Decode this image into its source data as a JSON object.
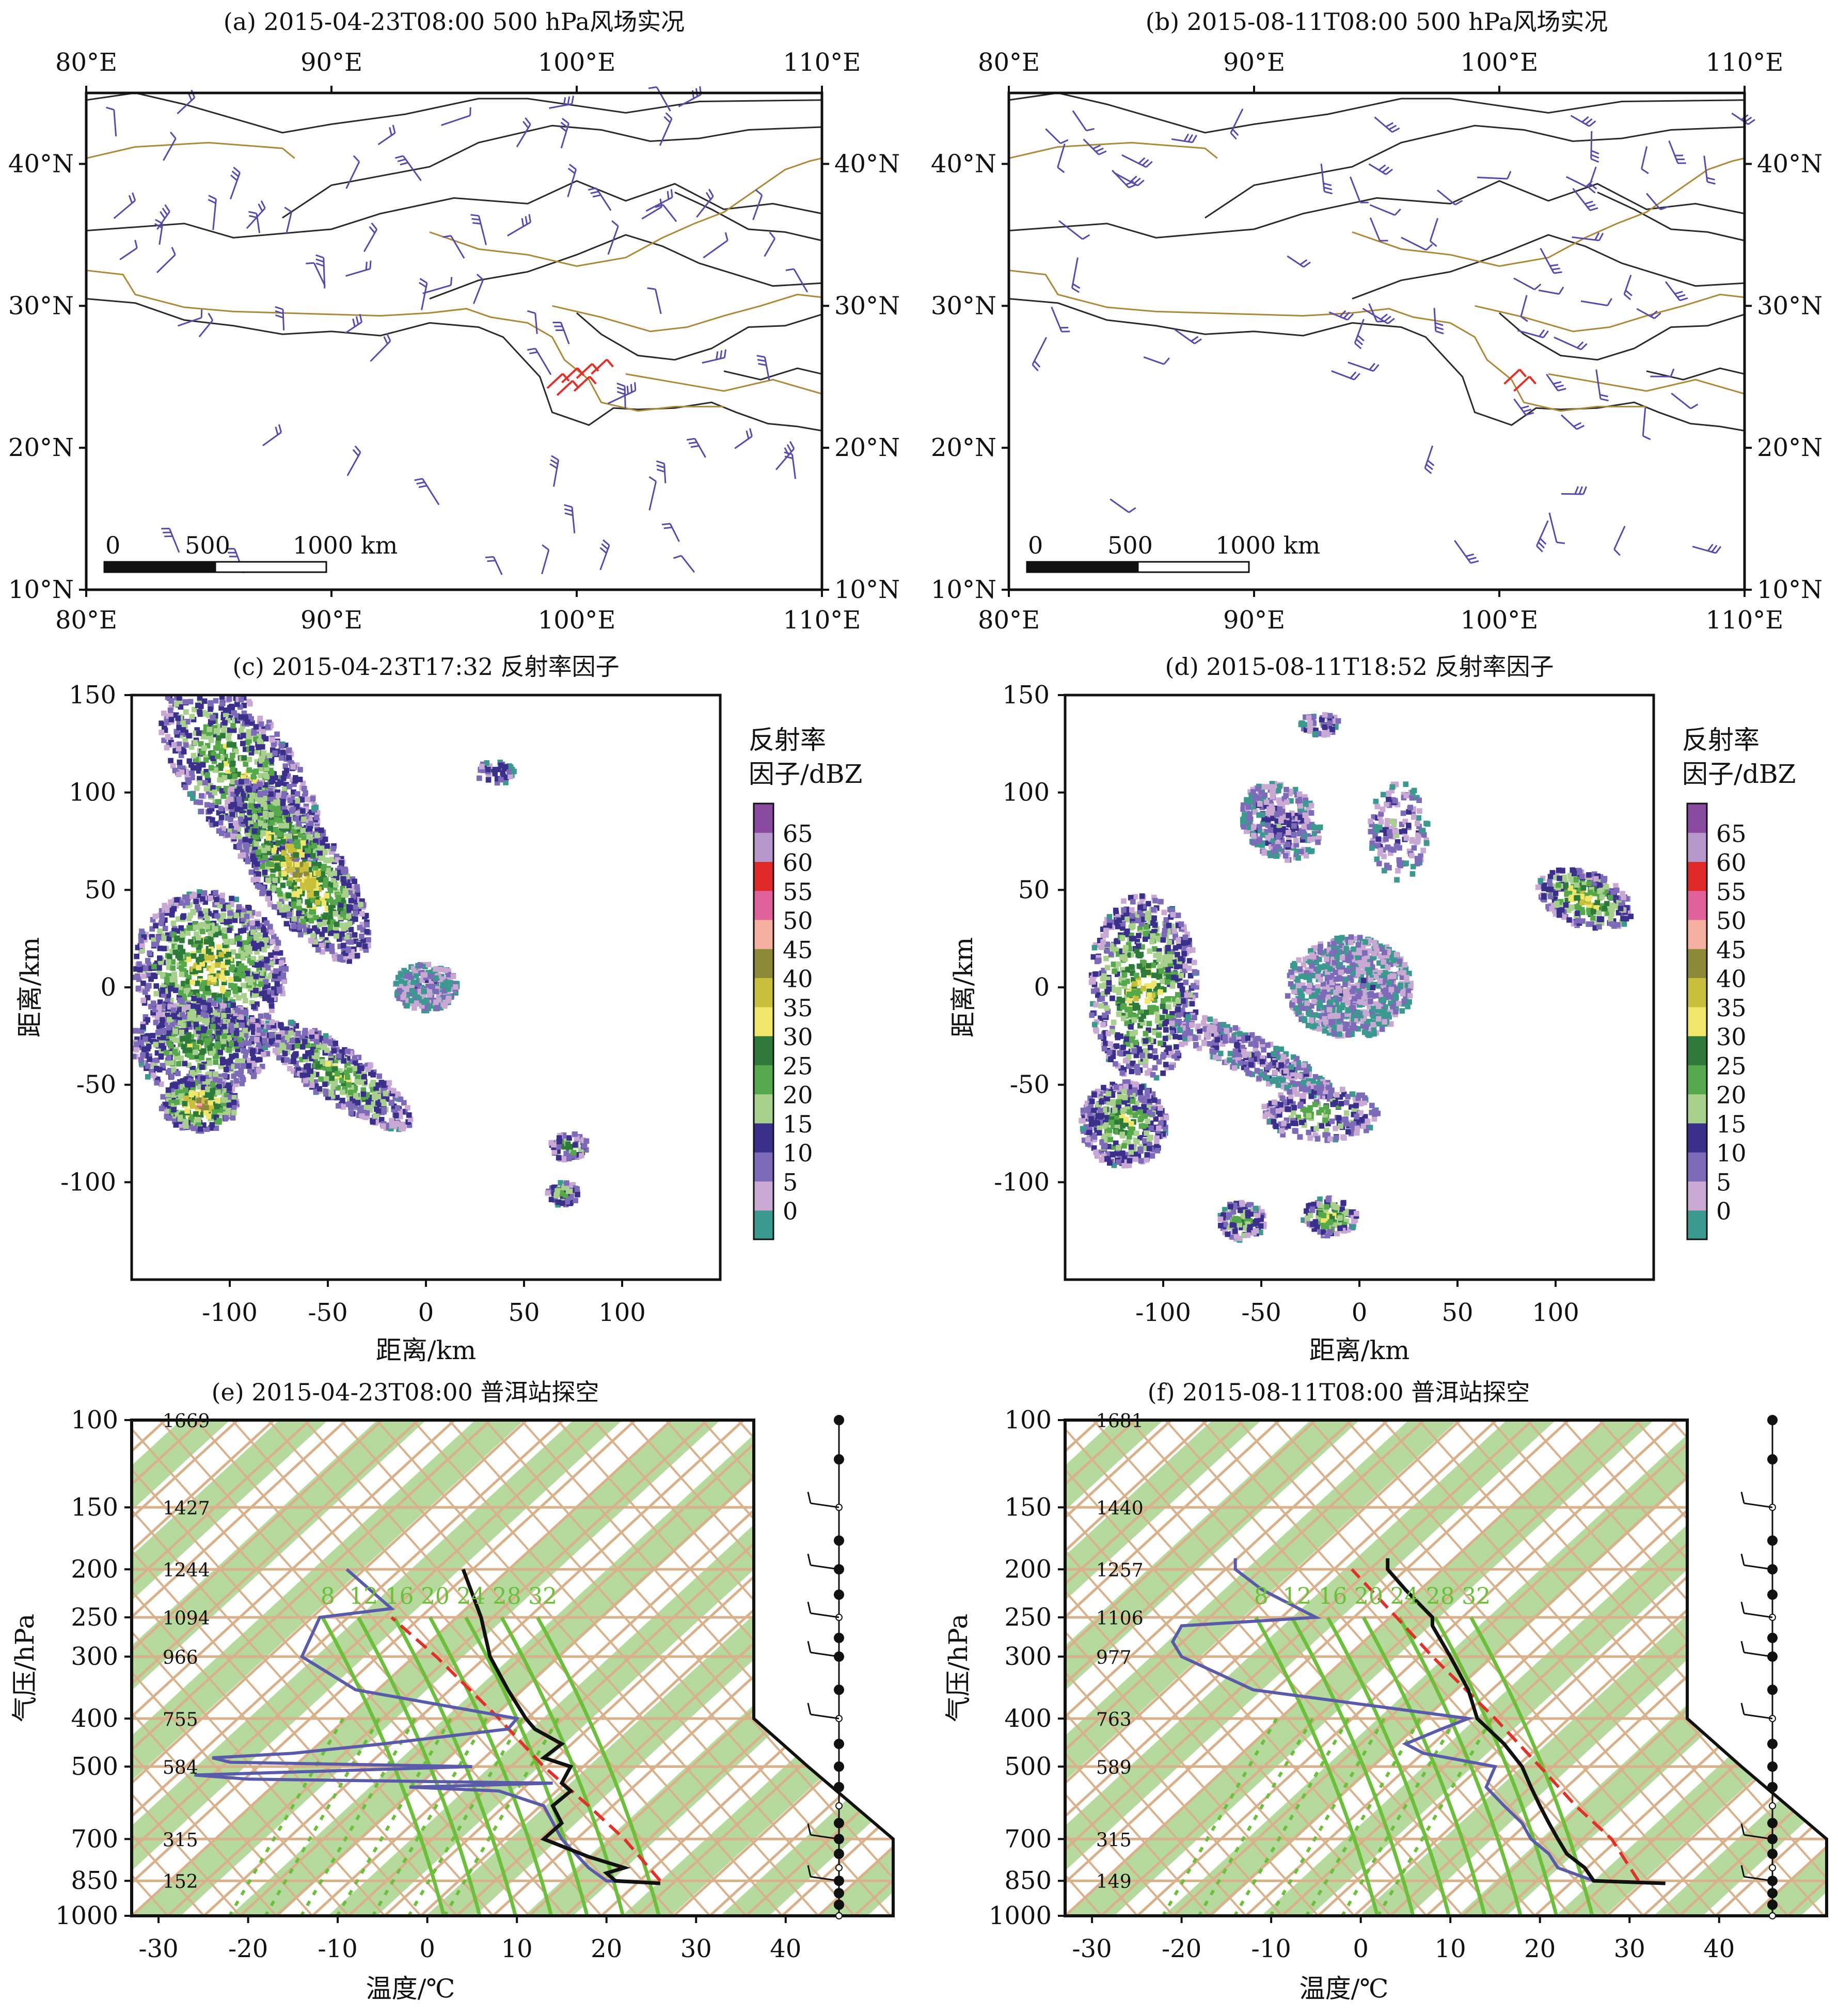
{
  "colors": {
    "wind_barb": "#5a4aa8",
    "wind_barb_highlight": "#e0302a",
    "border_black": "#2a2a2a",
    "border_river": "#a88a3a",
    "skewt_band": "#a9d38c",
    "skewt_isotherm": "#d8b08a",
    "moist_adiabat": "#6cbf3a",
    "temperature_line": "#111111",
    "dewpoint_line": "#5a5aaa",
    "parcel_line": "#e0302a"
  },
  "panels": {
    "a": {
      "title": "(a) 2015-04-23T08:00  500 hPa风场实况",
      "x_ticks": [
        "80°E",
        "90°E",
        "100°E",
        "110°E"
      ],
      "y_ticks": [
        "10°N",
        "20°N",
        "30°N",
        "40°N"
      ],
      "scale_labels": [
        "0",
        "500",
        "1000 km"
      ]
    },
    "b": {
      "title": "(b) 2015-08-11T08:00  500 hPa风场实况",
      "x_ticks": [
        "80°E",
        "90°E",
        "100°E",
        "110°E"
      ],
      "y_ticks": [
        "10°N",
        "20°N",
        "30°N",
        "40°N"
      ],
      "scale_labels": [
        "0",
        "500",
        "1000 km"
      ]
    },
    "c": {
      "title": "(c) 2015-04-23T17:32  反射率因子",
      "xlabel": "距离/km",
      "ylabel": "距离/km",
      "x_ticks": [
        "-100",
        "-50",
        "0",
        "50",
        "100"
      ],
      "y_ticks": [
        "150",
        "100",
        "50",
        "0",
        "-50",
        "-100"
      ],
      "colorbar_title": [
        "反射率",
        "因子/dBZ"
      ],
      "colorbar_ticks": [
        "65",
        "60",
        "55",
        "50",
        "45",
        "40",
        "35",
        "30",
        "25",
        "20",
        "15",
        "10",
        "5",
        "0"
      ]
    },
    "d": {
      "title": "(d) 2015-08-11T18:52  反射率因子",
      "xlabel": "距离/km",
      "ylabel": "距离/km",
      "x_ticks": [
        "-100",
        "-50",
        "0",
        "50",
        "100"
      ],
      "y_ticks": [
        "150",
        "100",
        "50",
        "0",
        "-50",
        "-100"
      ],
      "colorbar_title": [
        "反射率",
        "因子/dBZ"
      ],
      "colorbar_ticks": [
        "65",
        "60",
        "55",
        "50",
        "45",
        "40",
        "35",
        "30",
        "25",
        "20",
        "15",
        "10",
        "5",
        "0"
      ]
    },
    "e": {
      "title": "(e) 2015-04-23T08:00  普洱站探空",
      "xlabel": "温度/℃",
      "ylabel": "气压/hPa",
      "x_ticks": [
        "-30",
        "-20",
        "-10",
        "0",
        "10",
        "20",
        "30",
        "40"
      ],
      "p_ticks": [
        "100",
        "150",
        "200",
        "250",
        "300",
        "400",
        "500",
        "700",
        "850",
        "1000"
      ],
      "heights": [
        "1669",
        "1427",
        "1244",
        "1094",
        "966",
        "755",
        "584",
        "315",
        "152"
      ],
      "adiabat_labels": [
        "8",
        "12",
        "16",
        "20",
        "24",
        "28",
        "32"
      ]
    },
    "f": {
      "title": "(f) 2015-08-11T08:00  普洱站探空",
      "xlabel": "温度/℃",
      "ylabel": "气压/hPa",
      "x_ticks": [
        "-30",
        "-20",
        "-10",
        "0",
        "10",
        "20",
        "30",
        "40"
      ],
      "p_ticks": [
        "100",
        "150",
        "200",
        "250",
        "300",
        "400",
        "500",
        "700",
        "850",
        "1000"
      ],
      "heights": [
        "1681",
        "1440",
        "1257",
        "1106",
        "977",
        "763",
        "589",
        "315",
        "149"
      ],
      "adiabat_labels": [
        "8",
        "12",
        "16",
        "20",
        "24",
        "28",
        "32"
      ]
    }
  },
  "chart_data": [
    {
      "type": "map",
      "panel": "a",
      "title": "(a) 2015-04-23T08:00  500 hPa风场实况",
      "xlim": [
        80,
        110
      ],
      "ylim": [
        10,
        45
      ],
      "xticks": [
        80,
        90,
        100,
        110
      ],
      "yticks": [
        10,
        20,
        30,
        40
      ]
    },
    {
      "type": "map",
      "panel": "b",
      "title": "(b) 2015-08-11T08:00  500 hPa风场实况",
      "xlim": [
        80,
        110
      ],
      "ylim": [
        10,
        45
      ],
      "xticks": [
        80,
        90,
        100,
        110
      ],
      "yticks": [
        10,
        20,
        30,
        40
      ]
    },
    {
      "type": "heatmap",
      "panel": "c",
      "title": "(c) 2015-04-23T17:32  反射率因子",
      "xlabel": "距离/km",
      "ylabel": "距离/km",
      "xlim": [
        -150,
        150
      ],
      "ylim": [
        -150,
        150
      ],
      "colorbar": [
        0,
        5,
        10,
        15,
        20,
        25,
        30,
        35,
        40,
        45,
        50,
        55,
        60,
        65
      ]
    },
    {
      "type": "heatmap",
      "panel": "d",
      "title": "(d) 2015-08-11T18:52  反射率因子",
      "xlabel": "距离/km",
      "ylabel": "距离/km",
      "xlim": [
        -150,
        150
      ],
      "ylim": [
        -150,
        150
      ],
      "colorbar": [
        0,
        5,
        10,
        15,
        20,
        25,
        30,
        35,
        40,
        45,
        50,
        55,
        60,
        65
      ]
    },
    {
      "type": "line",
      "panel": "e",
      "title": "(e) 2015-04-23T08:00  普洱站探空",
      "xlabel": "温度/℃",
      "ylabel": "气压/hPa",
      "xlim": [
        -33,
        52
      ],
      "plim": [
        1000,
        100
      ],
      "series": [
        {
          "p": [
            860,
            850,
            820,
            800,
            760,
            700,
            650,
            600,
            560,
            540,
            500,
            480,
            450,
            420,
            400,
            350,
            300,
            250,
            200
          ],
          "t": [
            26,
            21,
            20,
            22,
            18,
            13,
            15,
            14,
            16,
            15,
            16,
            13,
            15,
            12,
            11,
            9,
            7,
            6,
            4
          ]
        },
        {
          "p": [
            860,
            850,
            800,
            700,
            600,
            560,
            550,
            540,
            530,
            520,
            500,
            490,
            480,
            470,
            450,
            420,
            400,
            350,
            300,
            250,
            240,
            200
          ],
          "t": [
            26,
            20,
            18,
            15,
            13,
            8,
            -2,
            14,
            -20,
            -26,
            5,
            -22,
            -24,
            -15,
            -5,
            9,
            10,
            -8,
            -14,
            -12,
            -4,
            -9
          ]
        },
        {
          "p": [
            850,
            700,
            600,
            500,
            400,
            300,
            250
          ],
          "t": [
            26,
            22,
            18,
            13,
            8,
            1,
            -4
          ]
        }
      ],
      "annotations": [
        "1669",
        "1427",
        "1244",
        "1094",
        "966",
        "755",
        "584",
        "315",
        "152"
      ]
    },
    {
      "type": "line",
      "panel": "f",
      "title": "(f) 2015-08-11T08:00  普洱站探空",
      "xlabel": "温度/℃",
      "ylabel": "气压/hPa",
      "xlim": [
        -33,
        52
      ],
      "plim": [
        1000,
        100
      ],
      "series": [
        {
          "p": [
            860,
            850,
            800,
            750,
            700,
            650,
            600,
            550,
            500,
            450,
            400,
            350,
            300,
            260,
            250,
            220,
            200,
            190
          ],
          "t": [
            34,
            26,
            25,
            23,
            22,
            21,
            20,
            19,
            18,
            16,
            13,
            12,
            10,
            8,
            8,
            5,
            3,
            3
          ]
        },
        {
          "p": [
            850,
            800,
            750,
            700,
            650,
            600,
            550,
            500,
            470,
            450,
            420,
            400,
            350,
            300,
            280,
            260,
            250,
            220,
            200,
            190
          ],
          "t": [
            26,
            22,
            21,
            19,
            18,
            16,
            14,
            15,
            7,
            5,
            9,
            12,
            -12,
            -20,
            -21,
            -20,
            -5,
            -11,
            -14,
            -14
          ]
        },
        {
          "p": [
            850,
            700,
            600,
            500,
            400,
            300,
            250,
            200
          ],
          "t": [
            31,
            28,
            24,
            20,
            15,
            8,
            4,
            -1
          ]
        }
      ],
      "annotations": [
        "1681",
        "1440",
        "1257",
        "1106",
        "977",
        "763",
        "589",
        "315",
        "149"
      ]
    }
  ]
}
